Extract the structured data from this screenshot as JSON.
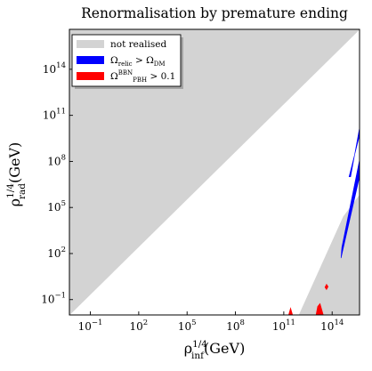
{
  "chart_data": {
    "type": "area",
    "title": "Renormalisation by premature ending",
    "xlabel": {
      "base": "ρ",
      "sup": "1/4",
      "sub": "inf",
      "unit": "(GeV)"
    },
    "ylabel": {
      "base": "ρ",
      "sup": "1/4",
      "sub": "rad",
      "unit": "(GeV)"
    },
    "xscale": "log10",
    "yscale": "log10",
    "xlim": [
      -2.3,
      15.7
    ],
    "ylim": [
      -2.0,
      16.6
    ],
    "x_ticks": [
      {
        "mantissa": "10",
        "exp": "−1",
        "value": -1
      },
      {
        "mantissa": "10",
        "exp": "2",
        "value": 2
      },
      {
        "mantissa": "10",
        "exp": "5",
        "value": 5
      },
      {
        "mantissa": "10",
        "exp": "8",
        "value": 8
      },
      {
        "mantissa": "10",
        "exp": "11",
        "value": 11
      },
      {
        "mantissa": "10",
        "exp": "14",
        "value": 14
      }
    ],
    "y_ticks": [
      {
        "mantissa": "10",
        "exp": "−1",
        "value": -1
      },
      {
        "mantissa": "10",
        "exp": "2",
        "value": 2
      },
      {
        "mantissa": "10",
        "exp": "5",
        "value": 5
      },
      {
        "mantissa": "10",
        "exp": "8",
        "value": 8
      },
      {
        "mantissa": "10",
        "exp": "11",
        "value": 11
      },
      {
        "mantissa": "10",
        "exp": "14",
        "value": 14
      }
    ],
    "legend": {
      "position": "upper-left",
      "entries": [
        {
          "id": "grey",
          "color": "#d3d3d3",
          "label_main": "not realised",
          "parts": []
        },
        {
          "id": "blue",
          "color": "#0000ff",
          "label_main": "",
          "parts": [
            {
              "t": "Ω",
              "k": "n"
            },
            {
              "t": "relic",
              "k": "sub"
            },
            {
              "t": " > Ω",
              "k": "n"
            },
            {
              "t": "DM",
              "k": "sub"
            }
          ]
        },
        {
          "id": "red",
          "color": "#ff0000",
          "label_main": "",
          "parts": [
            {
              "t": "Ω",
              "k": "n"
            },
            {
              "t": "BBN",
              "k": "sup"
            },
            {
              "t": "PBH",
              "k": "sub"
            },
            {
              "t": " > 0.1",
              "k": "n"
            }
          ]
        }
      ]
    },
    "series": [
      {
        "id": "grey",
        "name": "not realised",
        "color": "#d3d3d3",
        "regions": [
          [
            [
              -2.3,
              -2.0
            ],
            [
              15.7,
              16.6
            ],
            [
              -2.3,
              16.6
            ]
          ],
          [
            [
              11.95,
              -2.0
            ],
            [
              14.7,
              4.4
            ],
            [
              15.7,
              5.8
            ],
            [
              15.7,
              -2.0
            ]
          ]
        ]
      },
      {
        "id": "blue",
        "name": "Ω_relic > Ω_DM",
        "color": "#0000ff",
        "regions": [
          [
            [
              14.6,
              2.4
            ],
            [
              15.7,
              8.1
            ],
            [
              15.7,
              7.0
            ],
            [
              14.55,
              1.7
            ]
          ],
          [
            [
              15.15,
              7.0
            ],
            [
              15.7,
              10.2
            ],
            [
              15.7,
              9.7
            ],
            [
              15.05,
              7.0
            ]
          ]
        ]
      },
      {
        "id": "red",
        "name": "Ω_PBH^BBN > 0.1",
        "color": "#ff0000",
        "regions": [
          [
            [
              11.3,
              -2.0
            ],
            [
              11.42,
              -1.55
            ],
            [
              11.55,
              -2.0
            ]
          ],
          [
            [
              13.0,
              -2.0
            ],
            [
              13.1,
              -1.45
            ],
            [
              13.25,
              -1.25
            ],
            [
              13.45,
              -2.0
            ]
          ],
          [
            [
              13.55,
              -0.2
            ],
            [
              13.65,
              0.0
            ],
            [
              13.75,
              -0.15
            ],
            [
              13.65,
              -0.35
            ]
          ]
        ]
      }
    ],
    "grid": false
  }
}
